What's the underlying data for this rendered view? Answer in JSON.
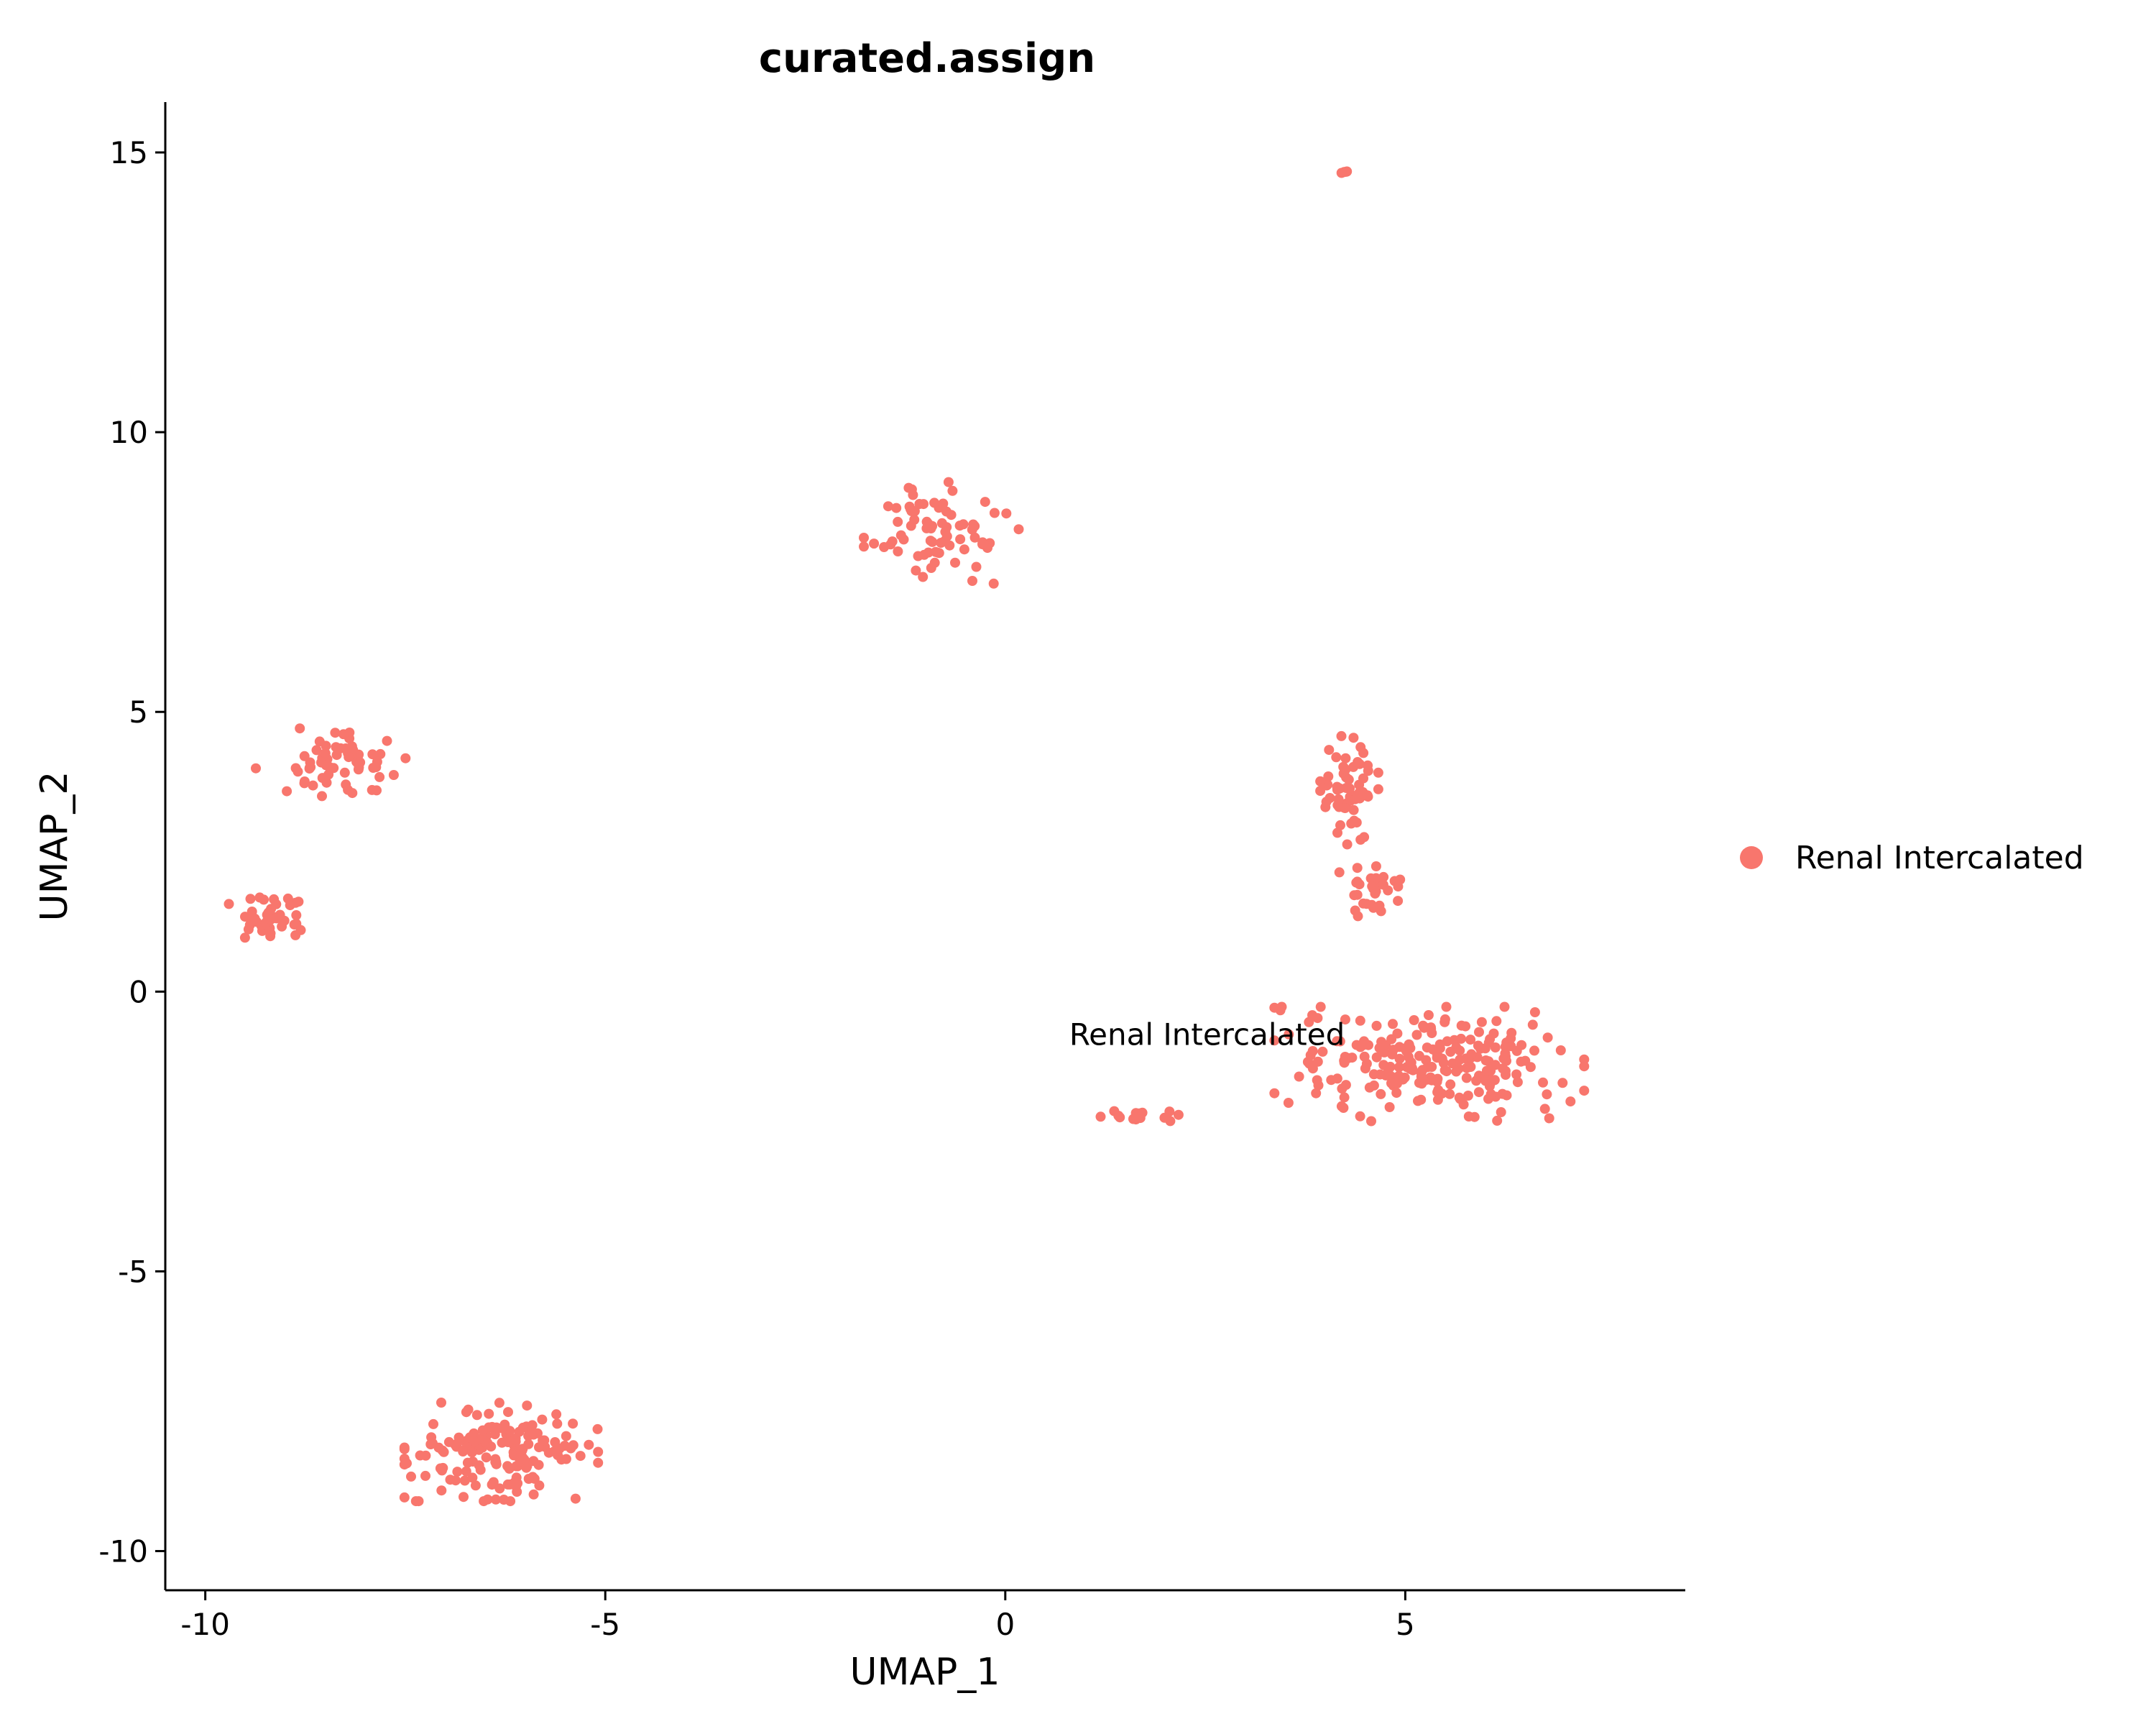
{
  "chart_data": {
    "type": "scatter",
    "title": "curated.assign",
    "xlabel": "UMAP_1",
    "ylabel": "UMAP_2",
    "xlim": [
      -10.5,
      8.5
    ],
    "ylim": [
      -10.7,
      15.9
    ],
    "xticks": [
      -10,
      -5,
      0,
      5
    ],
    "yticks": [
      -10,
      -5,
      0,
      5,
      10,
      15
    ],
    "xtick_labels": [
      "-10",
      "-5",
      "0",
      "5"
    ],
    "ytick_labels": [
      "-10",
      "-5",
      "0",
      "5",
      "10",
      "15"
    ],
    "grid": false,
    "legend_position": "right",
    "series": [
      {
        "name": "Renal Intercalated",
        "color": "#F8766D",
        "clusters": [
          {
            "center": [
              4.25,
              14.65
            ],
            "spread": [
              0.08,
              0.06
            ],
            "count": 4
          },
          {
            "center": [
              -0.8,
              8.2
            ],
            "spread": [
              0.8,
              0.75
            ],
            "count": 75
          },
          {
            "center": [
              -8.4,
              4.1
            ],
            "spread": [
              0.8,
              0.5
            ],
            "count": 60
          },
          {
            "center": [
              -9.1,
              1.3
            ],
            "spread": [
              0.5,
              0.4
            ],
            "count": 40
          },
          {
            "center": [
              4.3,
              3.6
            ],
            "spread": [
              0.3,
              0.8
            ],
            "count": 60
          },
          {
            "center": [
              4.6,
              1.8
            ],
            "spread": [
              0.35,
              0.5
            ],
            "count": 30
          },
          {
            "center": [
              5.3,
              -1.3
            ],
            "spread": [
              1.6,
              0.85
            ],
            "count": 230
          },
          {
            "center": [
              1.5,
              -2.25
            ],
            "spread": [
              0.55,
              0.12
            ],
            "count": 14
          },
          {
            "center": [
              -6.3,
              -8.2
            ],
            "spread": [
              1.0,
              0.75
            ],
            "count": 160
          }
        ]
      }
    ],
    "annotations": [
      {
        "text": "Renal Intercalated",
        "x": 0.8,
        "y": -0.95
      }
    ]
  }
}
